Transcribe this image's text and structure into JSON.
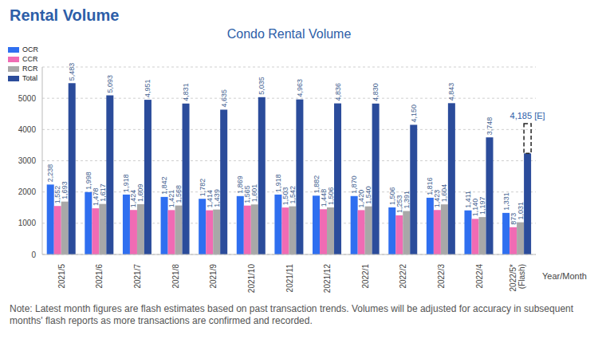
{
  "chart_data": {
    "type": "bar",
    "title": "Rental Volume",
    "subtitle": "Condo Rental Volume",
    "x_label": "Year/Month",
    "note": "Note: Latest month figures are flash estimates based on past transaction trends. Volumes will be adjusted for accuracy in subsequent months' flash reports as more transactions are confirmed and recorded.",
    "categories": [
      "2021/5",
      "2021/6",
      "2021/7",
      "2021/8",
      "2021/9",
      "2021/10",
      "2021/11",
      "2021/12",
      "2022/1",
      "2022/2",
      "2022/3",
      "2022/4",
      "2022/5* (Flash)"
    ],
    "series": [
      {
        "name": "OCR",
        "color": "#2f6ff0",
        "values": [
          2238,
          1998,
          1918,
          1842,
          1782,
          1869,
          1918,
          1882,
          1870,
          1506,
          1816,
          1411,
          1331
        ],
        "value_labels": [
          "2,238",
          "1,998",
          "1,918",
          "1,842",
          "1,782",
          "1,869",
          "1,918",
          "1,882",
          "1,870",
          "1,506",
          "1,816",
          "1,411",
          "1,331"
        ]
      },
      {
        "name": "CCR",
        "color": "#f06bb4",
        "values": [
          1552,
          1478,
          1424,
          1421,
          1414,
          1565,
          1503,
          1448,
          1420,
          1253,
          1423,
          1140,
          873
        ],
        "value_labels": [
          "1,552",
          "1,478",
          "1,424",
          "1,421",
          "1,414",
          "1,565",
          "1,503",
          "1,448",
          "1,420",
          "1,253",
          "1,423",
          "1,140",
          "873"
        ]
      },
      {
        "name": "RCR",
        "color": "#a8a8a8",
        "values": [
          1693,
          1617,
          1609,
          1568,
          1439,
          1601,
          1542,
          1506,
          1540,
          1391,
          1604,
          1197,
          1031
        ],
        "value_labels": [
          "1,693",
          "1,617",
          "1,609",
          "1,568",
          "1,439",
          "1,601",
          "1,542",
          "1,506",
          "1,540",
          "1,391",
          "1,604",
          "1,197",
          "1,031"
        ]
      },
      {
        "name": "Total",
        "color": "#2b4c9b",
        "values": [
          5483,
          5093,
          4951,
          4831,
          4635,
          5035,
          4963,
          4836,
          4830,
          4150,
          4843,
          3748,
          3235
        ],
        "value_labels": [
          "5,483",
          "5,093",
          "4,951",
          "4,831",
          "4,635",
          "5,035",
          "4,963",
          "4,836",
          "4,830",
          "4,150",
          "4,843",
          "3,748",
          null
        ]
      }
    ],
    "annotations": [
      {
        "text": "4,185 [E]",
        "series": "Total",
        "category": "2022/5* (Flash)",
        "value": 4185
      }
    ],
    "ylim": [
      0,
      6000
    ],
    "yticks": [
      0,
      1000,
      2000,
      3000,
      4000,
      5000
    ],
    "grid": true,
    "legend": "upper left",
    "data_labels": true
  }
}
